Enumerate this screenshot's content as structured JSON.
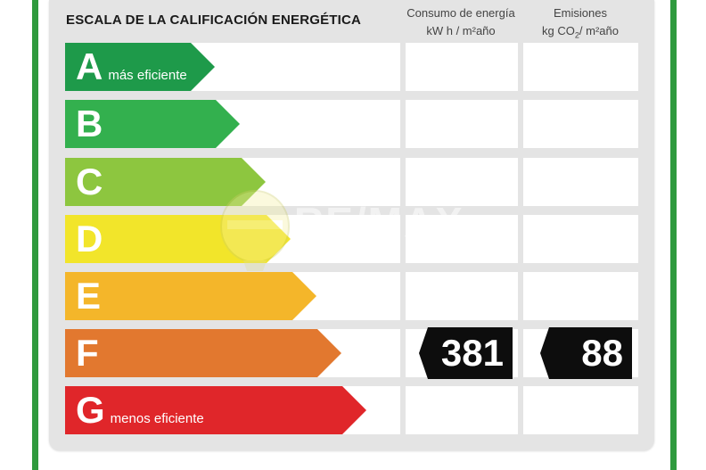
{
  "title": "ESCALA DE LA CALIFICACIÓN ENERGÉTICA",
  "columns": {
    "energy": {
      "line1": "Consumo de energía",
      "line2": "kW h / m²año"
    },
    "emissions": {
      "line1": "Emisiones",
      "line2_prefix": "kg CO",
      "line2_sub": "2",
      "line2_suffix": "/ m²año"
    }
  },
  "ratings": [
    {
      "letter": "A",
      "label": "más eficiente",
      "color": "#1e9a4a"
    },
    {
      "letter": "B",
      "label": "",
      "color": "#33b04e"
    },
    {
      "letter": "C",
      "label": "",
      "color": "#8dc63f"
    },
    {
      "letter": "D",
      "label": "",
      "color": "#f2e52a"
    },
    {
      "letter": "E",
      "label": "",
      "color": "#f4b62a"
    },
    {
      "letter": "F",
      "label": "",
      "color": "#e2782f"
    },
    {
      "letter": "G",
      "label": "menos eficiente",
      "color": "#e0262a"
    }
  ],
  "current": {
    "rating": "F",
    "energy_value": "381",
    "emissions_value": "88"
  },
  "watermark": {
    "brand": "RE/MAX",
    "icon": "hot-air-balloon-icon"
  }
}
